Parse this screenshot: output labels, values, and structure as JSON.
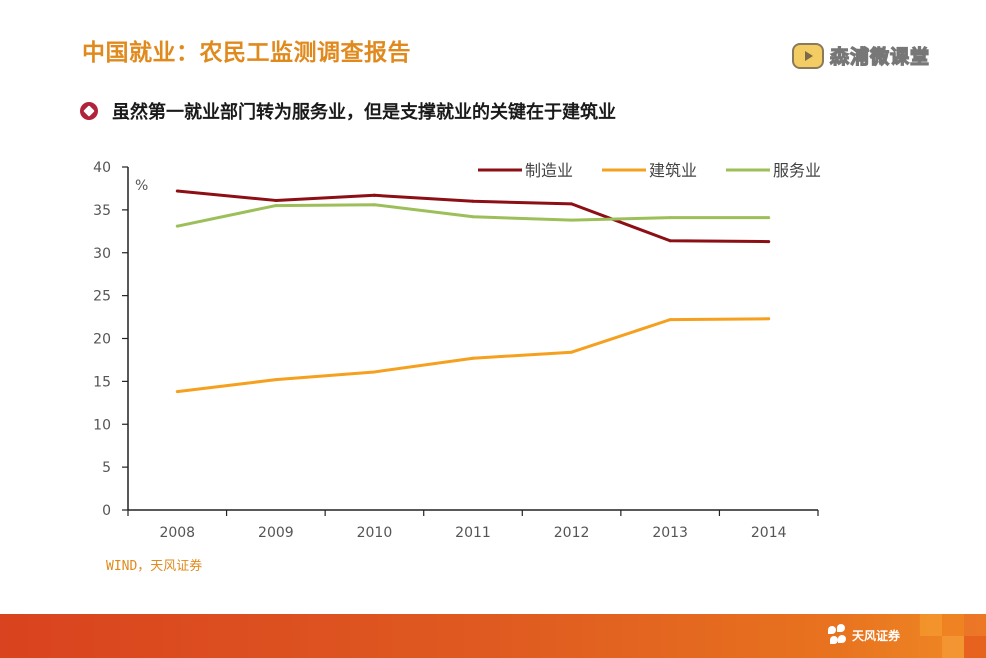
{
  "header": {
    "title": "中国就业：农民工监测调查报告",
    "brand_text": "森浦微课堂",
    "brand_icon": "play-badge-icon"
  },
  "subtitle": {
    "bullet_icon": "diamond-bullet-icon",
    "text": "虽然第一就业部门转为服务业，但是支撑就业的关键在于建筑业"
  },
  "source": "WIND，天风证券",
  "footer": {
    "logo_text": "天风证券",
    "logo_icon": "flower-logo-icon"
  },
  "colors": {
    "title": "#e08a1e",
    "manufacturing": "#8b0f14",
    "construction": "#f5a01e",
    "services": "#9cbf5a",
    "footer": "#df5a20"
  },
  "chart_data": {
    "type": "line",
    "title": "",
    "xlabel": "",
    "ylabel": "%",
    "categories": [
      "2008",
      "2009",
      "2010",
      "2011",
      "2012",
      "2013",
      "2014"
    ],
    "ylim": [
      0,
      40
    ],
    "yticks": [
      "0",
      "5",
      "10",
      "15",
      "20",
      "25",
      "30",
      "35",
      "40"
    ],
    "grid": false,
    "legend_position": "top-right",
    "series": [
      {
        "name": "制造业",
        "color": "#8b0f14",
        "values": [
          37.2,
          36.1,
          36.7,
          36.0,
          35.7,
          31.4,
          31.3
        ]
      },
      {
        "name": "建筑业",
        "color": "#f5a01e",
        "values": [
          13.8,
          15.2,
          16.1,
          17.7,
          18.4,
          22.2,
          22.3
        ]
      },
      {
        "name": "服务业",
        "color": "#9cbf5a",
        "values": [
          33.1,
          35.5,
          35.6,
          34.2,
          33.8,
          34.1,
          34.1
        ]
      }
    ]
  }
}
